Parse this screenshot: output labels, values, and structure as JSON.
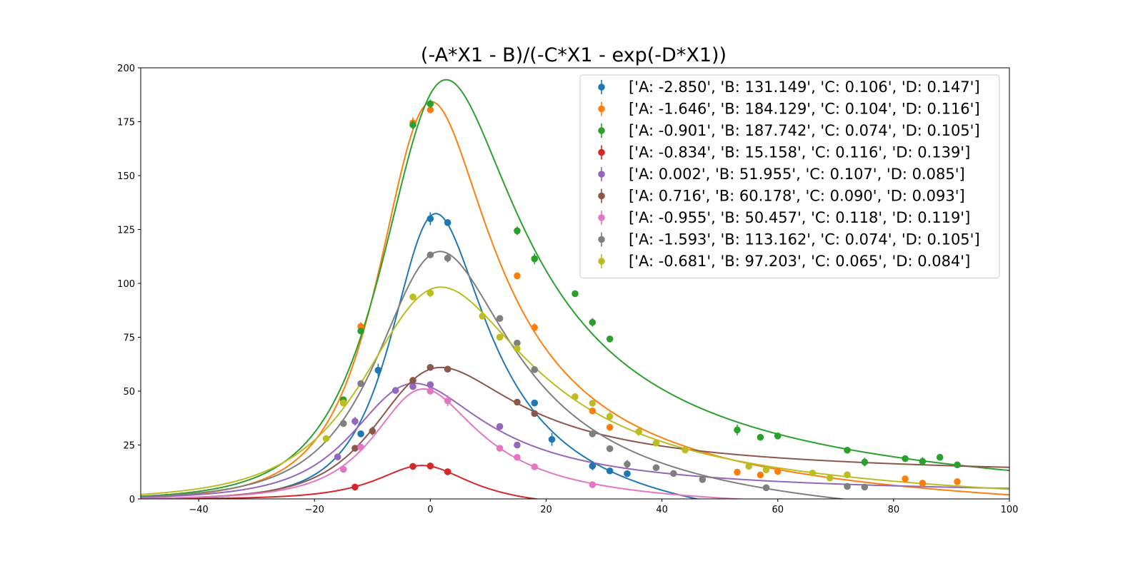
{
  "chart_data": {
    "type": "scatter",
    "title": "(-A*X1 - B)/(-C*X1 - exp(-D*X1))",
    "xlabel": "",
    "ylabel": "",
    "xlim": [
      -50,
      100
    ],
    "ylim": [
      0,
      200
    ],
    "x_ticks": [
      -40,
      -20,
      0,
      20,
      40,
      60,
      80,
      100
    ],
    "y_ticks": [
      0,
      25,
      50,
      75,
      100,
      125,
      150,
      175,
      200
    ],
    "x_tick_labels": [
      "−40",
      "−20",
      "0",
      "20",
      "40",
      "60",
      "80",
      "100"
    ],
    "y_tick_labels": [
      "0",
      "25",
      "50",
      "75",
      "100",
      "125",
      "150",
      "175",
      "200"
    ],
    "grid": false,
    "legend_position": "upper right",
    "series": [
      {
        "name": "['A: -2.850', 'B: 131.149', 'C: 0.106', 'D: 0.147']",
        "color": "#1f77b4",
        "params": {
          "A": -2.85,
          "B": 131.149,
          "C": 0.106,
          "D": 0.147
        },
        "points": [
          [
            -12,
            30.2,
            1.5
          ],
          [
            -9,
            59.7,
            3
          ],
          [
            0,
            130,
            3
          ],
          [
            3,
            128.2,
            1.5
          ],
          [
            18,
            44.5,
            1.5
          ],
          [
            21,
            27.6,
            3
          ],
          [
            28,
            15.3,
            2
          ],
          [
            31,
            13,
            1.5
          ],
          [
            34,
            11.7,
            1.5
          ]
        ]
      },
      {
        "name": "['A: -1.646', 'B: 184.129', 'C: 0.104', 'D: 0.116']",
        "color": "#ff7f0e",
        "params": {
          "A": -1.646,
          "B": 184.129,
          "C": 0.104,
          "D": 0.116
        },
        "points": [
          [
            -15,
            44.8,
            1.5
          ],
          [
            -12,
            80,
            2
          ],
          [
            -3,
            174.5,
            2.5
          ],
          [
            0,
            180.5,
            1.5
          ],
          [
            15,
            103.5,
            1.5
          ],
          [
            18,
            79.5,
            2
          ],
          [
            28,
            40.8,
            1.5
          ],
          [
            31,
            33.2,
            1.5
          ],
          [
            53,
            12.4,
            1.5
          ],
          [
            57,
            11.1,
            1.5
          ],
          [
            60,
            12.8,
            1.5
          ],
          [
            82,
            9.3,
            1.5
          ],
          [
            85,
            7.3,
            1.5
          ],
          [
            91,
            8,
            1.5
          ]
        ]
      },
      {
        "name": "['A: -0.901', 'B: 187.742', 'C: 0.074', 'D: 0.105']",
        "color": "#2ca02c",
        "params": {
          "A": -0.901,
          "B": 187.742,
          "C": 0.074,
          "D": 0.105
        },
        "points": [
          [
            -15,
            46,
            1.5
          ],
          [
            -12,
            77.9,
            1.5
          ],
          [
            -3,
            173.5,
            2
          ],
          [
            0,
            183.3,
            2
          ],
          [
            15,
            124.4,
            2
          ],
          [
            18,
            111.4,
            2.5
          ],
          [
            25,
            95.2,
            1.5
          ],
          [
            28,
            81.9,
            2
          ],
          [
            31,
            74.2,
            1.5
          ],
          [
            53,
            32,
            2.5
          ],
          [
            57,
            28.6,
            1.5
          ],
          [
            60,
            29.2,
            1.5
          ],
          [
            72,
            22.6,
            1.5
          ],
          [
            75,
            17.1,
            2
          ],
          [
            82,
            18.7,
            1.5
          ],
          [
            85,
            17.4,
            2
          ],
          [
            88,
            19.3,
            1.5
          ],
          [
            91,
            15.8,
            1.5
          ]
        ]
      },
      {
        "name": "['A: -0.834', 'B: 15.158', 'C: 0.116', 'D: 0.139']",
        "color": "#d62728",
        "params": {
          "A": -0.834,
          "B": 15.158,
          "C": 0.116,
          "D": 0.139
        },
        "points": [
          [
            -13,
            5.5,
            1
          ],
          [
            -3,
            15.1,
            1
          ],
          [
            0,
            15.3,
            1
          ],
          [
            3,
            12.6,
            1
          ]
        ]
      },
      {
        "name": "['A: 0.002', 'B: 51.955', 'C: 0.107', 'D: 0.085']",
        "color": "#9467bd",
        "params": {
          "A": 0.002,
          "B": 51.955,
          "C": 0.107,
          "D": 0.085
        },
        "points": [
          [
            -16,
            19.5,
            1
          ],
          [
            -13,
            36,
            2
          ],
          [
            -6,
            50.3,
            1
          ],
          [
            -3,
            52.1,
            1
          ],
          [
            0,
            53,
            1
          ],
          [
            12,
            33.6,
            1
          ],
          [
            15,
            25,
            1
          ]
        ]
      },
      {
        "name": "['A: 0.716', 'B: 60.178', 'C: 0.090', 'D: 0.093']",
        "color": "#8c564b",
        "params": {
          "A": 0.716,
          "B": 60.178,
          "C": 0.09,
          "D": 0.093
        },
        "points": [
          [
            -13,
            23.5,
            1
          ],
          [
            -10,
            31.5,
            2
          ],
          [
            -3,
            55,
            1
          ],
          [
            0,
            61,
            1
          ],
          [
            3,
            60.2,
            1
          ],
          [
            15,
            44.9,
            1
          ],
          [
            18,
            39.6,
            1
          ]
        ]
      },
      {
        "name": "['A: -0.955', 'B: 50.457', 'C: 0.118', 'D: 0.119']",
        "color": "#e377c2",
        "params": {
          "A": -0.955,
          "B": 50.457,
          "C": 0.118,
          "D": 0.119
        },
        "points": [
          [
            -15,
            13.7,
            1
          ],
          [
            -12,
            24,
            1
          ],
          [
            0,
            50,
            1.5
          ],
          [
            3,
            45.5,
            2.5
          ],
          [
            12,
            23.5,
            1
          ],
          [
            15,
            19.3,
            1
          ],
          [
            18,
            14.9,
            1
          ],
          [
            28,
            6.6,
            1
          ]
        ]
      },
      {
        "name": "['A: -1.593', 'B: 113.162', 'C: 0.074', 'D: 0.105']",
        "color": "#7f7f7f",
        "params": {
          "A": -1.593,
          "B": 113.162,
          "C": 0.074,
          "D": 0.105
        },
        "points": [
          [
            -15,
            35,
            1.5
          ],
          [
            -12,
            53.5,
            1.5
          ],
          [
            0,
            113.2,
            1.5
          ],
          [
            3,
            111.7,
            2
          ],
          [
            12,
            83.7,
            1.5
          ],
          [
            15,
            72.3,
            1.5
          ],
          [
            18,
            60,
            1.5
          ],
          [
            28,
            30.2,
            1.5
          ],
          [
            31,
            23.3,
            1.5
          ],
          [
            34,
            16.1,
            2
          ],
          [
            39,
            14.5,
            1.5
          ],
          [
            42,
            11.8,
            1.5
          ],
          [
            47,
            9,
            1.5
          ],
          [
            58,
            5.2,
            1.5
          ],
          [
            72,
            5.8,
            1.5
          ],
          [
            75,
            5.5,
            1.5
          ]
        ]
      },
      {
        "name": "['A: -0.681', 'B: 97.203', 'C: 0.065', 'D: 0.084']",
        "color": "#bcbd22",
        "params": {
          "A": -0.681,
          "B": 97.203,
          "C": 0.065,
          "D": 0.084
        },
        "points": [
          [
            -18,
            28,
            1.5
          ],
          [
            -15,
            44.5,
            1.5
          ],
          [
            -3,
            93.7,
            1.5
          ],
          [
            0,
            95.5,
            2
          ],
          [
            9,
            84.8,
            1.5
          ],
          [
            12,
            75,
            1.5
          ],
          [
            15,
            69.7,
            1.5
          ],
          [
            25,
            47.4,
            1.5
          ],
          [
            28,
            44.4,
            1.5
          ],
          [
            31,
            38.3,
            2
          ],
          [
            36,
            31.2,
            2
          ],
          [
            39,
            25.9,
            1.5
          ],
          [
            44,
            22.7,
            1.5
          ],
          [
            55,
            15.1,
            1.5
          ],
          [
            58,
            13.5,
            1.5
          ],
          [
            66,
            12,
            1.5
          ],
          [
            69,
            9.7,
            1.5
          ],
          [
            72,
            11.2,
            1.5
          ]
        ]
      }
    ]
  }
}
